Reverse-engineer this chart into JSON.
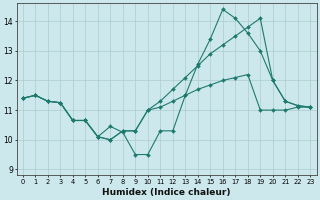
{
  "xlabel": "Humidex (Indice chaleur)",
  "background_color": "#cce8ec",
  "grid_color": "#aacccc",
  "line_color": "#1e7a6e",
  "xlim": [
    -0.5,
    23.5
  ],
  "ylim": [
    8.8,
    14.6
  ],
  "yticks": [
    9,
    10,
    11,
    12,
    13,
    14
  ],
  "xticks": [
    0,
    1,
    2,
    3,
    4,
    5,
    6,
    7,
    8,
    9,
    10,
    11,
    12,
    13,
    14,
    15,
    16,
    17,
    18,
    19,
    20,
    21,
    22,
    23
  ],
  "series": [
    [
      11.4,
      11.5,
      11.3,
      11.25,
      10.65,
      10.65,
      10.1,
      10.45,
      10.25,
      9.5,
      9.5,
      10.3,
      10.3,
      11.5,
      12.55,
      13.4,
      14.4,
      14.1,
      13.6,
      13.0,
      12.0,
      11.3,
      11.15,
      11.1
    ],
    [
      11.4,
      11.5,
      11.3,
      11.25,
      10.65,
      10.65,
      10.1,
      10.0,
      10.3,
      10.3,
      11.0,
      11.3,
      11.7,
      12.1,
      12.5,
      12.9,
      13.2,
      13.5,
      13.8,
      14.1,
      12.0,
      11.3,
      11.15,
      11.1
    ],
    [
      11.4,
      11.5,
      11.3,
      11.25,
      10.65,
      10.65,
      10.1,
      10.0,
      10.3,
      10.3,
      11.0,
      11.1,
      11.3,
      11.5,
      11.7,
      11.85,
      12.0,
      12.1,
      12.2,
      11.0,
      11.0,
      11.0,
      11.1,
      11.1
    ]
  ]
}
